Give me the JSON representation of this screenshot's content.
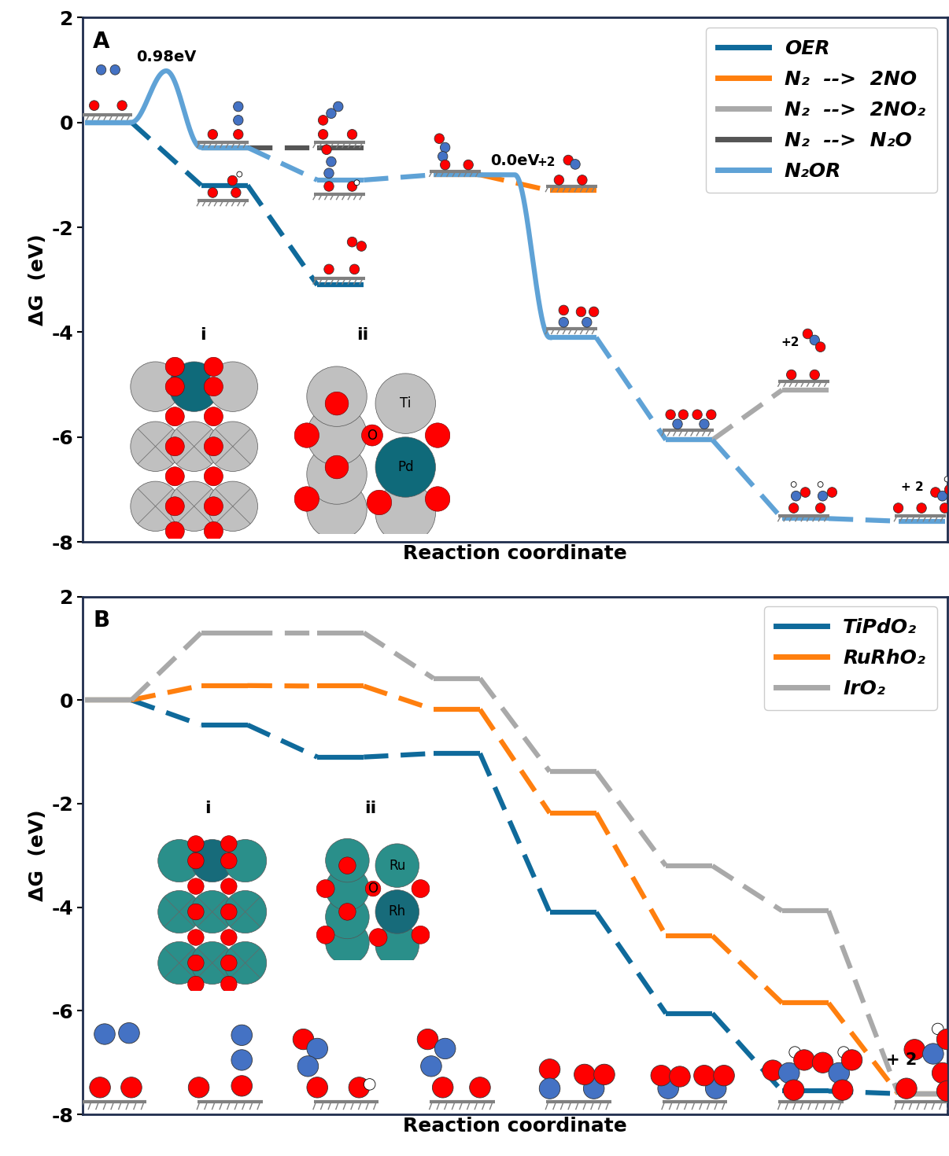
{
  "chart_data": [
    {
      "type": "line",
      "panel_label": "A",
      "x": [
        0,
        1,
        2,
        3,
        4,
        5,
        6,
        7
      ],
      "xlim": [
        -0.02,
        7.42
      ],
      "xticks": [],
      "ylim": [
        -8,
        2
      ],
      "yticks": [
        -8,
        -6,
        -4,
        -2,
        0,
        2
      ],
      "x_label": "Reaction coordinate",
      "y_label": "ΔG  (eV)",
      "tick_labels": "y",
      "legend": "upper right",
      "series": [
        {
          "name": "OER",
          "color": "#0f6a9b",
          "values": [
            0,
            -1.2,
            -3.1,
            null,
            null,
            null,
            null,
            null
          ]
        },
        {
          "name": "N₂  -->  2NO",
          "color": "#ff7f0e",
          "values": [
            null,
            null,
            null,
            -1.0,
            -1.3,
            null,
            null,
            null
          ]
        },
        {
          "name": "N₂  -->  2NO₂",
          "color": "#a9a9a9",
          "values": [
            null,
            null,
            null,
            null,
            null,
            -6.05,
            -5.1,
            null
          ]
        },
        {
          "name": "N₂  -->  N₂O",
          "color": "#555555",
          "values": [
            null,
            -0.48,
            -0.48,
            null,
            null,
            null,
            null,
            null
          ]
        },
        {
          "name": "N₂OR",
          "color": "#5fa2d6",
          "values": [
            0,
            -0.48,
            -1.1,
            -1.0,
            -4.1,
            -6.05,
            -7.55,
            -7.6
          ],
          "barriers": [
            {
              "from_step": 0,
              "value": 0.98,
              "label": "0.98eV"
            },
            {
              "from_step": 3,
              "value": 0.0,
              "label": "0.0eV"
            }
          ]
        }
      ],
      "annotations": [
        {
          "text": "+2",
          "series": "N₂  -->  2NO",
          "step": 4
        },
        {
          "text": "+2",
          "series": "N₂  -->  2NO₂",
          "step": 6
        },
        {
          "text": "+ 2",
          "series": "N₂OR",
          "step": 7
        }
      ],
      "insets": [
        {
          "label": "i"
        },
        {
          "label": "ii",
          "atom_labels": [
            "Ti",
            "O",
            "Pd"
          ]
        }
      ]
    },
    {
      "type": "line",
      "panel_label": "B",
      "x": [
        0,
        1,
        2,
        3,
        4,
        5,
        6,
        7
      ],
      "xlim": [
        -0.02,
        7.42
      ],
      "xticks": [],
      "ylim": [
        -8,
        2
      ],
      "yticks": [
        -8,
        -6,
        -4,
        -2,
        0,
        2
      ],
      "x_label": "Reaction coordinate",
      "y_label": "ΔG  (eV)",
      "tick_labels": "y",
      "legend": "upper right",
      "series": [
        {
          "name": "TiPdO₂",
          "color": "#0f6a9b",
          "values": [
            0,
            -0.48,
            -1.1,
            -1.03,
            -4.1,
            -6.05,
            -7.55,
            -7.6
          ]
        },
        {
          "name": "RuRhO₂",
          "color": "#ff7f0e",
          "values": [
            0,
            0.28,
            0.27,
            -0.18,
            -2.18,
            -4.55,
            -5.85,
            -7.6
          ]
        },
        {
          "name": "IrO₂",
          "color": "#a9a9a9",
          "values": [
            0,
            1.3,
            1.3,
            0.42,
            -1.38,
            -3.2,
            -4.07,
            -7.6
          ]
        }
      ],
      "annotations": [
        {
          "text": "+ 2",
          "step": 7
        }
      ],
      "insets": [
        {
          "label": "i"
        },
        {
          "label": "ii",
          "atom_labels": [
            "Ru",
            "O",
            "Rh"
          ]
        }
      ]
    }
  ]
}
